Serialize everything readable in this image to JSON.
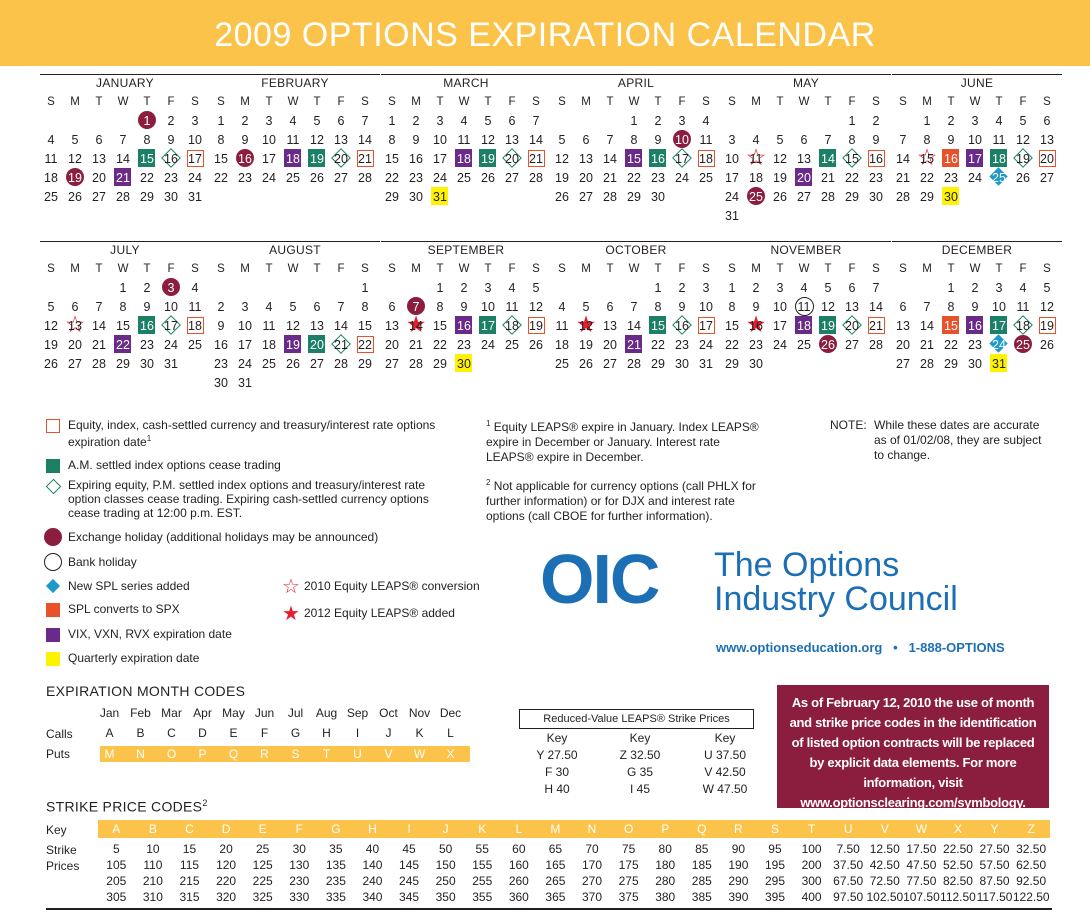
{
  "title": "2009 OPTIONS EXPIRATION CALENDAR",
  "weekdays": [
    "S",
    "M",
    "T",
    "W",
    "T",
    "F",
    "S"
  ],
  "months": [
    {
      "name": "JANUARY",
      "offset": 4,
      "days": 31,
      "marks": {
        "1": "hol",
        "15": "am",
        "16": "dia",
        "17": "exp",
        "19": "hol",
        "21": "vix"
      }
    },
    {
      "name": "FEBRUARY",
      "offset": 0,
      "days": 28,
      "marks": {
        "16": "hol",
        "18": "vix",
        "19": "am",
        "20": "dia",
        "21": "exp"
      }
    },
    {
      "name": "MARCH",
      "offset": 0,
      "days": 31,
      "marks": {
        "18": "vix",
        "19": "am",
        "20": "dia",
        "21": "exp",
        "31": "qtr"
      }
    },
    {
      "name": "APRIL",
      "offset": 3,
      "days": 30,
      "marks": {
        "10": "hol",
        "15": "vix",
        "16": "am",
        "17": "dia",
        "18": "exp"
      }
    },
    {
      "name": "MAY",
      "offset": 5,
      "days": 31,
      "marks": {
        "11": "star",
        "14": "am",
        "15": "dia",
        "16": "exp",
        "20": "vix",
        "25": "hol"
      }
    },
    {
      "name": "JUNE",
      "offset": 1,
      "days": 30,
      "marks": {
        "15": "star",
        "16": "spx",
        "17": "vix",
        "18": "am",
        "19": "dia",
        "20": "exp",
        "25": "spl",
        "30": "qtr"
      }
    },
    {
      "name": "JULY",
      "offset": 3,
      "days": 31,
      "marks": {
        "3": "hol",
        "13": "star",
        "16": "am",
        "17": "dia",
        "18": "exp",
        "22": "vix"
      }
    },
    {
      "name": "AUGUST",
      "offset": 6,
      "days": 31,
      "marks": {
        "19": "vix",
        "20": "am",
        "21": "dia",
        "22": "exp"
      }
    },
    {
      "name": "SEPTEMBER",
      "offset": 2,
      "days": 30,
      "marks": {
        "7": "hol",
        "14": "fstar",
        "16": "vix",
        "17": "am",
        "18": "dia",
        "19": "exp",
        "30": "qtr"
      }
    },
    {
      "name": "OCTOBER",
      "offset": 4,
      "days": 31,
      "marks": {
        "12": "fstar",
        "15": "am",
        "16": "dia",
        "17": "exp",
        "21": "vix"
      }
    },
    {
      "name": "NOVEMBER",
      "offset": 0,
      "days": 30,
      "marks": {
        "11": "bank",
        "16": "fstar",
        "18": "vix",
        "19": "am",
        "20": "dia",
        "21": "exp",
        "26": "hol"
      }
    },
    {
      "name": "DECEMBER",
      "offset": 2,
      "days": 31,
      "marks": {
        "15": "spx",
        "16": "vix",
        "17": "am",
        "18": "dia",
        "19": "exp",
        "24": "spl",
        "25": "hol",
        "31": "qtr"
      }
    }
  ],
  "legend": {
    "exp": "Equity, index, cash-settled currency and treasury/interest rate options expiration date",
    "exp_sup": "1",
    "am": "A.M. settled index options cease trading",
    "dia": "Expiring equity, P.M. settled index options and treasury/interest rate option classes cease trading. Expiring cash-settled currency options cease trading at 12:00 p.m. EST.",
    "hol": "Exchange holiday (additional holidays may be announced)",
    "bank": "Bank holiday",
    "spl": "New SPL series added",
    "spx": "SPL converts to SPX",
    "vix": "VIX, VXN, RVX expiration date",
    "qtr": "Quarterly expiration date",
    "star": "2010 Equity LEAPS® conversion",
    "fstar": "2012 Equity LEAPS® added"
  },
  "footnotes": {
    "f1_mark": "1",
    "f1": "Equity LEAPS® expire in January. Index LEAPS® expire in December or January. Interest rate LEAPS® expire in  December.",
    "f2_mark": "2",
    "f2": "Not applicable for currency options (call PHLX for further information) or for DJX and interest rate options (call CBOE for further information).",
    "note_label": "NOTE:",
    "note": "While these dates are accurate as of 01/02/08, they are subject to change."
  },
  "oic": {
    "logo": "OIC",
    "name_line1": "The Options",
    "name_line2": "Industry Council",
    "web": "www.optionseducation.org   •   1-888-OPTIONS"
  },
  "expiration_codes": {
    "title": "EXPIRATION MONTH CODES",
    "months": [
      "Jan",
      "Feb",
      "Mar",
      "Apr",
      "May",
      "Jun",
      "Jul",
      "Aug",
      "Sep",
      "Oct",
      "Nov",
      "Dec"
    ],
    "calls_label": "Calls",
    "calls": [
      "A",
      "B",
      "C",
      "D",
      "E",
      "F",
      "G",
      "H",
      "I",
      "J",
      "K",
      "L"
    ],
    "puts_label": "Puts",
    "puts": [
      "M",
      "N",
      "O",
      "P",
      "Q",
      "R",
      "S",
      "T",
      "U",
      "V",
      "W",
      "X"
    ]
  },
  "reduced_value": {
    "title": "Reduced-Value LEAPS® Strike Prices",
    "columns": [
      {
        "header": "Key",
        "rows": [
          "Y 27.50",
          "F 30",
          "H 40"
        ]
      },
      {
        "header": "Key",
        "rows": [
          "Z 32.50",
          "G 35",
          "I 45"
        ]
      },
      {
        "header": "Key",
        "rows": [
          "U 37.50",
          "V 42.50",
          "W 47.50"
        ]
      }
    ]
  },
  "notice": "As of February 12, 2010 the use of month and strike price codes in the identification of listed option contracts will be replaced by explicit data elements. For more information, visit www.optionsclearing.com/symbology.",
  "strike_codes": {
    "title": "STRIKE PRICE CODES",
    "title_sup": "2",
    "key_label": "Key",
    "strike_label": "Strike",
    "prices_label": "Prices",
    "keys": [
      "A",
      "B",
      "C",
      "D",
      "E",
      "F",
      "G",
      "H",
      "I",
      "J",
      "K",
      "L",
      "M",
      "N",
      "O",
      "P",
      "Q",
      "R",
      "S",
      "T",
      "U",
      "V",
      "W",
      "X",
      "Y",
      "Z"
    ],
    "rows": [
      [
        "5",
        "10",
        "15",
        "20",
        "25",
        "30",
        "35",
        "40",
        "45",
        "50",
        "55",
        "60",
        "65",
        "70",
        "75",
        "80",
        "85",
        "90",
        "95",
        "100",
        "7.50",
        "12.50",
        "17.50",
        "22.50",
        "27.50",
        "32.50"
      ],
      [
        "105",
        "110",
        "115",
        "120",
        "125",
        "130",
        "135",
        "140",
        "145",
        "150",
        "155",
        "160",
        "165",
        "170",
        "175",
        "180",
        "185",
        "190",
        "195",
        "200",
        "37.50",
        "42.50",
        "47.50",
        "52.50",
        "57.50",
        "62.50"
      ],
      [
        "205",
        "210",
        "215",
        "220",
        "225",
        "230",
        "235",
        "240",
        "245",
        "250",
        "255",
        "260",
        "265",
        "270",
        "275",
        "280",
        "285",
        "290",
        "295",
        "300",
        "67.50",
        "72.50",
        "77.50",
        "82.50",
        "87.50",
        "92.50"
      ],
      [
        "305",
        "310",
        "315",
        "320",
        "325",
        "330",
        "335",
        "340",
        "345",
        "350",
        "355",
        "360",
        "365",
        "370",
        "375",
        "380",
        "385",
        "390",
        "395",
        "400",
        "97.50",
        "102.50",
        "107.50",
        "112.50",
        "117.50",
        "122.50"
      ]
    ]
  }
}
